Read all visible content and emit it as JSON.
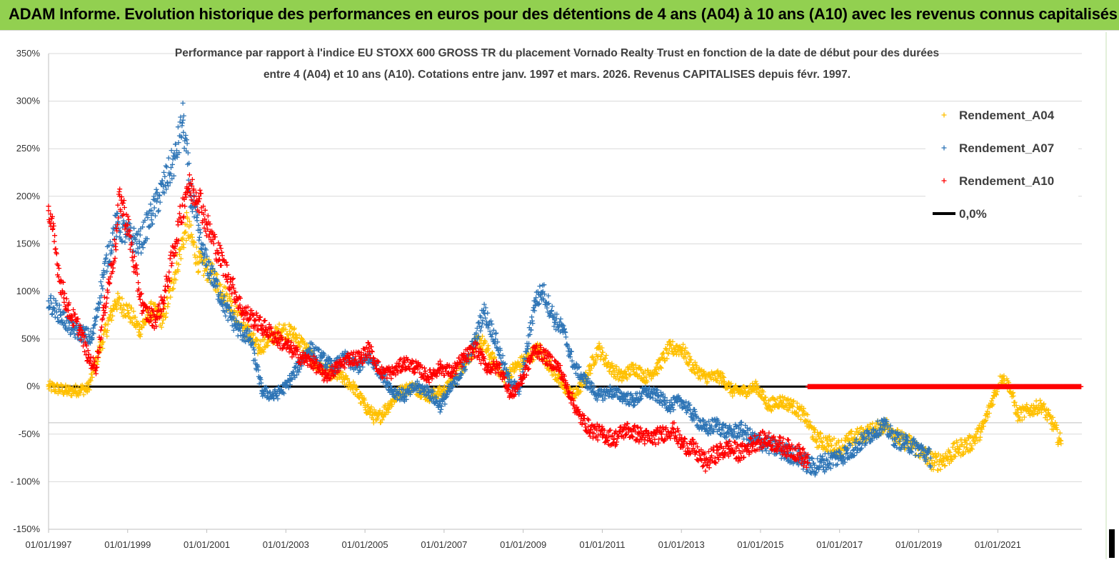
{
  "banner": {
    "title": "ADAM Informe. Evolution historique des performances en euros pour des détentions de 4 ans (A04) à 10 ans (A10) avec les revenus connus capitalisés"
  },
  "chart_data": {
    "type": "scatter",
    "title_line1": "Performance par rapport à l'indice EU STOXX 600 GROSS TR  du placement Vornado Realty Trust en fonction de la date de début pour des durées",
    "title_line2": "entre 4 (A04) et 10 ans (A10). Cotations entre janv. 1997 et mars. 2026. Revenus CAPITALISES depuis févr. 1997.",
    "xlabel": "",
    "ylabel": "",
    "x_ticks": [
      "01/01/1997",
      "01/01/1999",
      "01/01/2001",
      "01/01/2003",
      "01/01/2005",
      "01/01/2007",
      "01/01/2009",
      "01/01/2011",
      "01/01/2013",
      "01/01/2015",
      "01/01/2017",
      "01/01/2019",
      "01/01/2021"
    ],
    "x_range": [
      "1997-01-01",
      "2023-02-15"
    ],
    "y_ticks": [
      "350%",
      "300%",
      "250%",
      "200%",
      "150%",
      "100%",
      "50%",
      "0%",
      "-50%",
      "- 100%",
      "-150%"
    ],
    "y_range": [
      -150,
      350
    ],
    "grid": "horizontal",
    "legend_position": "right",
    "series": [
      {
        "name": "Rendement_A04",
        "color": "#ffc000",
        "marker": "+",
        "points": [
          [
            1997.0,
            0
          ],
          [
            1997.5,
            -5
          ],
          [
            1998.0,
            -2
          ],
          [
            1998.3,
            40
          ],
          [
            1998.7,
            90
          ],
          [
            1999.0,
            80
          ],
          [
            1999.3,
            60
          ],
          [
            1999.6,
            80
          ],
          [
            1999.9,
            70
          ],
          [
            2000.2,
            120
          ],
          [
            2000.5,
            170
          ],
          [
            2000.8,
            130
          ],
          [
            2001.1,
            120
          ],
          [
            2001.4,
            100
          ],
          [
            2001.7,
            80
          ],
          [
            2002.0,
            60
          ],
          [
            2002.3,
            40
          ],
          [
            2002.6,
            50
          ],
          [
            2002.9,
            60
          ],
          [
            2003.2,
            55
          ],
          [
            2003.5,
            40
          ],
          [
            2003.8,
            20
          ],
          [
            2004.1,
            15
          ],
          [
            2004.4,
            10
          ],
          [
            2004.7,
            0
          ],
          [
            2005.0,
            -20
          ],
          [
            2005.3,
            -35
          ],
          [
            2005.6,
            -20
          ],
          [
            2005.9,
            -5
          ],
          [
            2006.2,
            0
          ],
          [
            2006.6,
            -10
          ],
          [
            2007.0,
            -5
          ],
          [
            2007.3,
            10
          ],
          [
            2007.6,
            30
          ],
          [
            2007.9,
            50
          ],
          [
            2008.2,
            30
          ],
          [
            2008.5,
            10
          ],
          [
            2008.8,
            20
          ],
          [
            2009.1,
            30
          ],
          [
            2009.4,
            40
          ],
          [
            2009.7,
            20
          ],
          [
            2010.0,
            0
          ],
          [
            2010.3,
            -10
          ],
          [
            2010.6,
            10
          ],
          [
            2010.9,
            40
          ],
          [
            2011.2,
            20
          ],
          [
            2011.5,
            10
          ],
          [
            2011.8,
            20
          ],
          [
            2012.1,
            10
          ],
          [
            2012.4,
            20
          ],
          [
            2012.7,
            40
          ],
          [
            2013.0,
            40
          ],
          [
            2013.3,
            20
          ],
          [
            2013.6,
            10
          ],
          [
            2014.0,
            10
          ],
          [
            2014.3,
            -5
          ],
          [
            2014.6,
            -5
          ],
          [
            2014.9,
            0
          ],
          [
            2015.2,
            -20
          ],
          [
            2015.5,
            -15
          ],
          [
            2015.8,
            -20
          ],
          [
            2016.1,
            -30
          ],
          [
            2016.4,
            -55
          ],
          [
            2016.7,
            -60
          ],
          [
            2017.0,
            -65
          ],
          [
            2017.3,
            -55
          ],
          [
            2017.6,
            -50
          ],
          [
            2017.9,
            -45
          ],
          [
            2018.2,
            -40
          ],
          [
            2018.5,
            -55
          ],
          [
            2018.8,
            -60
          ],
          [
            2019.1,
            -70
          ],
          [
            2019.4,
            -80
          ],
          [
            2019.7,
            -75
          ],
          [
            2020.0,
            -65
          ],
          [
            2020.3,
            -60
          ],
          [
            2020.6,
            -45
          ],
          [
            2020.9,
            -10
          ],
          [
            2021.1,
            10
          ],
          [
            2021.3,
            0
          ],
          [
            2021.5,
            -30
          ],
          [
            2021.8,
            -25
          ],
          [
            2022.1,
            -20
          ],
          [
            2022.4,
            -40
          ],
          [
            2022.6,
            -60
          ]
        ]
      },
      {
        "name": "Rendement_A07",
        "color": "#2e75b6",
        "marker": "+",
        "points": [
          [
            1997.0,
            90
          ],
          [
            1997.3,
            75
          ],
          [
            1997.6,
            60
          ],
          [
            1997.9,
            55
          ],
          [
            1998.1,
            50
          ],
          [
            1998.4,
            120
          ],
          [
            1998.7,
            170
          ],
          [
            1999.0,
            160
          ],
          [
            1999.3,
            150
          ],
          [
            1999.6,
            180
          ],
          [
            1999.9,
            210
          ],
          [
            2000.2,
            240
          ],
          [
            2000.4,
            280
          ],
          [
            2000.6,
            200
          ],
          [
            2000.9,
            140
          ],
          [
            2001.2,
            110
          ],
          [
            2001.5,
            80
          ],
          [
            2001.8,
            60
          ],
          [
            2002.1,
            50
          ],
          [
            2002.4,
            -5
          ],
          [
            2002.7,
            -10
          ],
          [
            2003.0,
            0
          ],
          [
            2003.3,
            20
          ],
          [
            2003.6,
            40
          ],
          [
            2003.9,
            30
          ],
          [
            2004.2,
            20
          ],
          [
            2004.5,
            30
          ],
          [
            2004.8,
            20
          ],
          [
            2005.1,
            30
          ],
          [
            2005.4,
            15
          ],
          [
            2005.7,
            -5
          ],
          [
            2006.0,
            -10
          ],
          [
            2006.3,
            0
          ],
          [
            2006.6,
            -5
          ],
          [
            2006.9,
            -20
          ],
          [
            2007.2,
            0
          ],
          [
            2007.5,
            20
          ],
          [
            2007.8,
            50
          ],
          [
            2008.0,
            80
          ],
          [
            2008.3,
            50
          ],
          [
            2008.6,
            10
          ],
          [
            2008.9,
            -5
          ],
          [
            2009.1,
            40
          ],
          [
            2009.3,
            90
          ],
          [
            2009.5,
            100
          ],
          [
            2009.8,
            70
          ],
          [
            2010.0,
            60
          ],
          [
            2010.3,
            20
          ],
          [
            2010.6,
            5
          ],
          [
            2010.9,
            -10
          ],
          [
            2011.2,
            -5
          ],
          [
            2011.5,
            -10
          ],
          [
            2011.8,
            -15
          ],
          [
            2012.1,
            -5
          ],
          [
            2012.4,
            -10
          ],
          [
            2012.7,
            -20
          ],
          [
            2013.0,
            -15
          ],
          [
            2013.3,
            -30
          ],
          [
            2013.6,
            -45
          ],
          [
            2013.9,
            -40
          ],
          [
            2014.2,
            -50
          ],
          [
            2014.5,
            -45
          ],
          [
            2014.8,
            -55
          ],
          [
            2015.1,
            -60
          ],
          [
            2015.4,
            -65
          ],
          [
            2015.7,
            -70
          ],
          [
            2016.0,
            -75
          ],
          [
            2016.3,
            -85
          ],
          [
            2016.6,
            -80
          ],
          [
            2016.9,
            -75
          ],
          [
            2017.2,
            -70
          ],
          [
            2017.5,
            -60
          ],
          [
            2017.8,
            -50
          ],
          [
            2018.1,
            -40
          ],
          [
            2018.4,
            -55
          ],
          [
            2018.7,
            -60
          ],
          [
            2019.0,
            -65
          ],
          [
            2019.3,
            -75
          ]
        ]
      },
      {
        "name": "Rendement_A10",
        "color": "#ff0000",
        "marker": "+",
        "points": [
          [
            1997.0,
            185
          ],
          [
            1997.1,
            165
          ],
          [
            1997.3,
            110
          ],
          [
            1997.5,
            80
          ],
          [
            1997.8,
            60
          ],
          [
            1998.0,
            30
          ],
          [
            1998.2,
            20
          ],
          [
            1998.4,
            80
          ],
          [
            1998.7,
            150
          ],
          [
            1998.8,
            200
          ],
          [
            1999.0,
            170
          ],
          [
            1999.2,
            120
          ],
          [
            1999.4,
            80
          ],
          [
            1999.7,
            70
          ],
          [
            1999.9,
            90
          ],
          [
            2000.2,
            150
          ],
          [
            2000.5,
            210
          ],
          [
            2000.8,
            200
          ],
          [
            2001.0,
            170
          ],
          [
            2001.3,
            140
          ],
          [
            2001.6,
            110
          ],
          [
            2001.9,
            80
          ],
          [
            2002.2,
            70
          ],
          [
            2002.5,
            60
          ],
          [
            2002.8,
            50
          ],
          [
            2003.1,
            40
          ],
          [
            2003.4,
            30
          ],
          [
            2003.7,
            25
          ],
          [
            2004.0,
            10
          ],
          [
            2004.3,
            20
          ],
          [
            2004.6,
            30
          ],
          [
            2004.9,
            30
          ],
          [
            2005.1,
            40
          ],
          [
            2005.4,
            15
          ],
          [
            2005.7,
            15
          ],
          [
            2006.0,
            25
          ],
          [
            2006.3,
            20
          ],
          [
            2006.6,
            10
          ],
          [
            2006.9,
            20
          ],
          [
            2007.2,
            15
          ],
          [
            2007.5,
            30
          ],
          [
            2007.8,
            40
          ],
          [
            2008.1,
            20
          ],
          [
            2008.4,
            20
          ],
          [
            2008.7,
            -10
          ],
          [
            2009.0,
            10
          ],
          [
            2009.3,
            40
          ],
          [
            2009.6,
            30
          ],
          [
            2009.9,
            20
          ],
          [
            2010.1,
            0
          ],
          [
            2010.4,
            -30
          ],
          [
            2010.7,
            -45
          ],
          [
            2011.0,
            -50
          ],
          [
            2011.3,
            -55
          ],
          [
            2011.6,
            -45
          ],
          [
            2011.9,
            -50
          ],
          [
            2012.2,
            -55
          ],
          [
            2012.5,
            -50
          ],
          [
            2012.8,
            -45
          ],
          [
            2013.0,
            -60
          ],
          [
            2013.3,
            -65
          ],
          [
            2013.6,
            -80
          ],
          [
            2013.9,
            -70
          ],
          [
            2014.2,
            -65
          ],
          [
            2014.5,
            -70
          ],
          [
            2014.8,
            -60
          ],
          [
            2015.1,
            -55
          ],
          [
            2015.4,
            -60
          ],
          [
            2015.7,
            -65
          ],
          [
            2016.0,
            -70
          ],
          [
            2016.2,
            -80
          ],
          [
            2016.2,
            0
          ],
          [
            2023.1,
            0
          ]
        ]
      },
      {
        "name": "0,0%",
        "color": "#000000",
        "marker": "line",
        "points": [
          [
            1997.0,
            0
          ],
          [
            2016.2,
            0
          ]
        ]
      }
    ]
  }
}
